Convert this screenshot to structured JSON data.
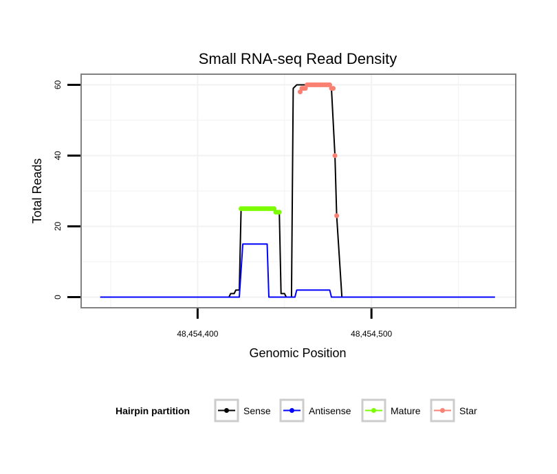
{
  "chart_data": {
    "type": "line",
    "title": "Small RNA-seq Read Density",
    "xlabel": "Genomic Position",
    "ylabel": "Total Reads",
    "xlim": [
      48454333,
      48454583
    ],
    "ylim": [
      -3,
      63
    ],
    "x_ticks": [
      48454400,
      48454500
    ],
    "x_tick_labels": [
      "48,454,400",
      "48,454,500"
    ],
    "y_ticks": [
      0,
      20,
      40,
      60
    ],
    "y_tick_labels": [
      "0",
      "20",
      "40",
      "60"
    ],
    "grid": true,
    "legend": {
      "title": "Hairpin partition",
      "position": "bottom",
      "entries": [
        {
          "label": "Sense",
          "color": "#000000"
        },
        {
          "label": "Antisense",
          "color": "#0000ff"
        },
        {
          "label": "Mature",
          "color": "#7cfc00"
        },
        {
          "label": "Star",
          "color": "#fa8072"
        }
      ]
    },
    "series": [
      {
        "name": "Sense",
        "color": "#000000",
        "style": "line",
        "x": [
          48454344,
          48454418,
          48454419,
          48454421,
          48454422,
          48454424,
          48454425,
          48454444,
          48454445,
          48454447,
          48454448,
          48454450,
          48454451,
          48454454,
          48454455,
          48454457,
          48454462,
          48454476,
          48454477,
          48454479,
          48454480,
          48454483,
          48454484,
          48454571
        ],
        "y": [
          0,
          0,
          1,
          1,
          2,
          2,
          25,
          25,
          24,
          24,
          1,
          1,
          0,
          0,
          59,
          60,
          60,
          60,
          59,
          40,
          23,
          0,
          0,
          0
        ]
      },
      {
        "name": "Antisense",
        "color": "#0000ff",
        "style": "line",
        "x": [
          48454344,
          48454424,
          48454426,
          48454440,
          48454441,
          48454456,
          48454457,
          48454476,
          48454477,
          48454571
        ],
        "y": [
          0,
          0,
          15,
          15,
          0,
          0,
          2,
          2,
          0,
          0
        ]
      },
      {
        "name": "Mature",
        "color": "#7cfc00",
        "style": "points",
        "x": [
          48454425,
          48454426,
          48454427,
          48454428,
          48454429,
          48454430,
          48454431,
          48454432,
          48454433,
          48454434,
          48454435,
          48454436,
          48454437,
          48454438,
          48454439,
          48454440,
          48454441,
          48454442,
          48454443,
          48454444,
          48454445,
          48454446,
          48454447
        ],
        "y": [
          25,
          25,
          25,
          25,
          25,
          25,
          25,
          25,
          25,
          25,
          25,
          25,
          25,
          25,
          25,
          25,
          25,
          25,
          25,
          25,
          24,
          24,
          24
        ]
      },
      {
        "name": "Star",
        "color": "#fa8072",
        "style": "points",
        "x": [
          48454459,
          48454460,
          48454461,
          48454462,
          48454463,
          48454464,
          48454465,
          48454466,
          48454467,
          48454468,
          48454469,
          48454470,
          48454471,
          48454472,
          48454473,
          48454474,
          48454475,
          48454476,
          48454477,
          48454478,
          48454479,
          48454480
        ],
        "y": [
          58,
          59,
          59,
          59,
          60,
          60,
          60,
          60,
          60,
          60,
          60,
          60,
          60,
          60,
          60,
          60,
          60,
          60,
          59,
          59,
          40,
          23
        ]
      }
    ]
  }
}
